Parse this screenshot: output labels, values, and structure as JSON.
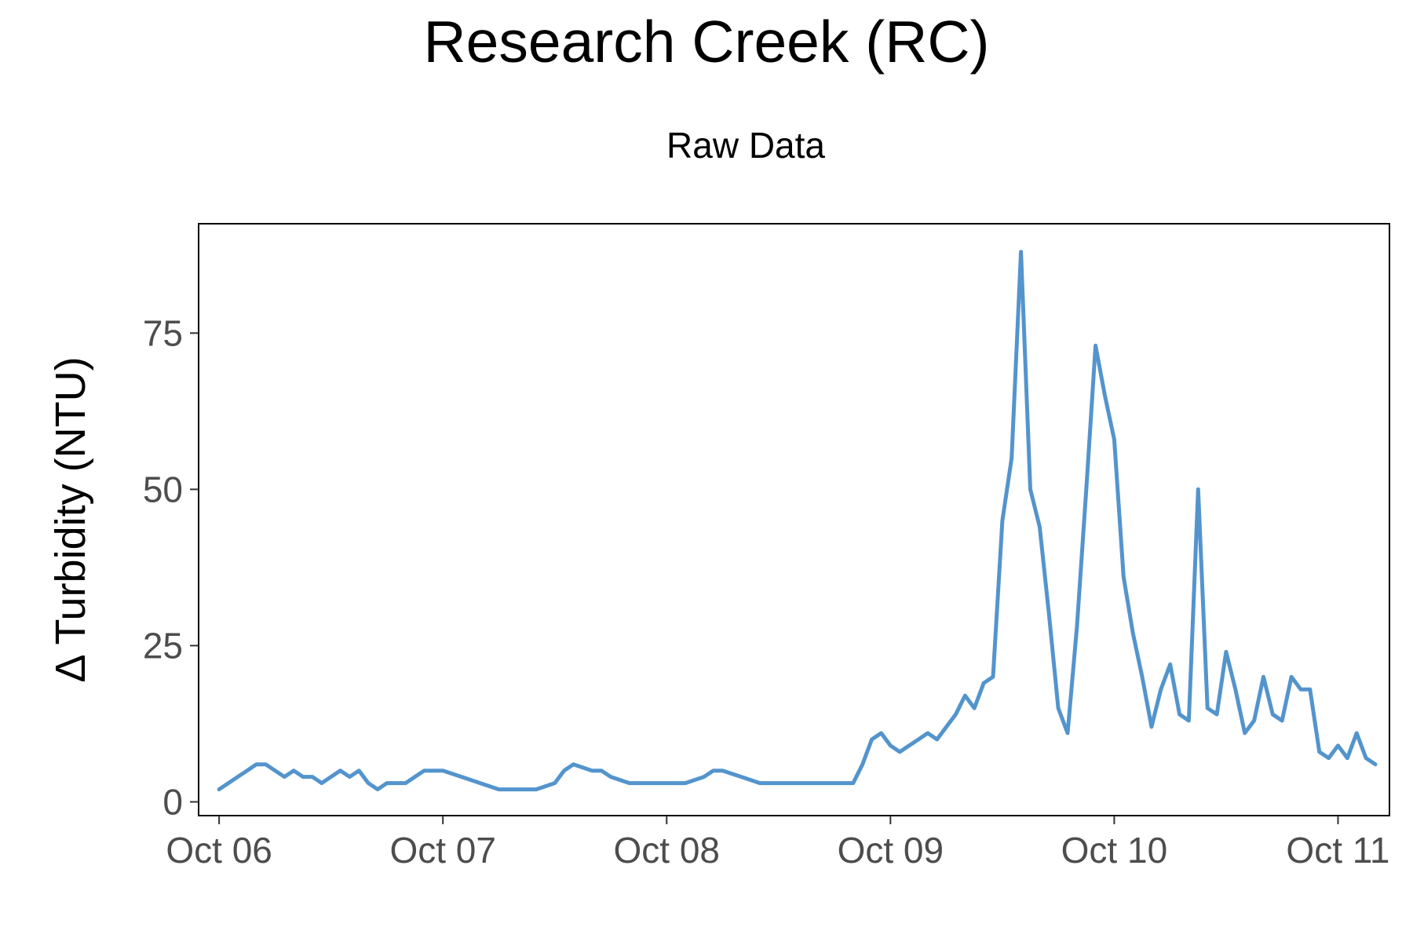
{
  "chart_data": {
    "type": "line",
    "title": "Research Creek (RC)",
    "xlabel": "",
    "ylabel": "Δ Turbidity (NTU)",
    "x_ticks": [
      "Oct 06",
      "Oct 07",
      "Oct 08",
      "Oct 09",
      "Oct 10",
      "Oct 11"
    ],
    "y_ticks": [
      0,
      25,
      50,
      75
    ],
    "xlim": [
      "2023-10-05 21:48",
      "2023-10-11 05:31"
    ],
    "ylim": [
      -2.2,
      92.5
    ],
    "grid": false,
    "legend_position": "top",
    "series": [
      {
        "name": "Raw Data",
        "color": "#5394cd",
        "points": [
          [
            "2023-10-06 00:00",
            2
          ],
          [
            "2023-10-06 01:00",
            3
          ],
          [
            "2023-10-06 02:00",
            4
          ],
          [
            "2023-10-06 03:00",
            5
          ],
          [
            "2023-10-06 04:00",
            6
          ],
          [
            "2023-10-06 05:00",
            6
          ],
          [
            "2023-10-06 06:00",
            5
          ],
          [
            "2023-10-06 07:00",
            4
          ],
          [
            "2023-10-06 08:00",
            5
          ],
          [
            "2023-10-06 09:00",
            4
          ],
          [
            "2023-10-06 10:00",
            4
          ],
          [
            "2023-10-06 11:00",
            3
          ],
          [
            "2023-10-06 12:00",
            4
          ],
          [
            "2023-10-06 13:00",
            5
          ],
          [
            "2023-10-06 14:00",
            4
          ],
          [
            "2023-10-06 15:00",
            5
          ],
          [
            "2023-10-06 16:00",
            3
          ],
          [
            "2023-10-06 17:00",
            2
          ],
          [
            "2023-10-06 18:00",
            3
          ],
          [
            "2023-10-06 19:00",
            3
          ],
          [
            "2023-10-06 20:00",
            3
          ],
          [
            "2023-10-06 21:00",
            4
          ],
          [
            "2023-10-06 22:00",
            5
          ],
          [
            "2023-10-07 00:00",
            5
          ],
          [
            "2023-10-07 02:00",
            4
          ],
          [
            "2023-10-07 04:00",
            3
          ],
          [
            "2023-10-07 06:00",
            2
          ],
          [
            "2023-10-07 08:00",
            2
          ],
          [
            "2023-10-07 10:00",
            2
          ],
          [
            "2023-10-07 12:00",
            3
          ],
          [
            "2023-10-07 13:00",
            5
          ],
          [
            "2023-10-07 14:00",
            6
          ],
          [
            "2023-10-07 16:00",
            5
          ],
          [
            "2023-10-07 17:00",
            5
          ],
          [
            "2023-10-07 18:00",
            4
          ],
          [
            "2023-10-07 20:00",
            3
          ],
          [
            "2023-10-07 22:00",
            3
          ],
          [
            "2023-10-08 00:00",
            3
          ],
          [
            "2023-10-08 02:00",
            3
          ],
          [
            "2023-10-08 04:00",
            4
          ],
          [
            "2023-10-08 05:00",
            5
          ],
          [
            "2023-10-08 06:00",
            5
          ],
          [
            "2023-10-08 08:00",
            4
          ],
          [
            "2023-10-08 10:00",
            3
          ],
          [
            "2023-10-08 12:00",
            3
          ],
          [
            "2023-10-08 14:00",
            3
          ],
          [
            "2023-10-08 16:00",
            3
          ],
          [
            "2023-10-08 18:00",
            3
          ],
          [
            "2023-10-08 20:00",
            3
          ],
          [
            "2023-10-08 21:00",
            6
          ],
          [
            "2023-10-08 22:00",
            10
          ],
          [
            "2023-10-08 23:00",
            11
          ],
          [
            "2023-10-09 00:00",
            9
          ],
          [
            "2023-10-09 01:00",
            8
          ],
          [
            "2023-10-09 02:00",
            9
          ],
          [
            "2023-10-09 03:00",
            10
          ],
          [
            "2023-10-09 04:00",
            11
          ],
          [
            "2023-10-09 05:00",
            10
          ],
          [
            "2023-10-09 06:00",
            12
          ],
          [
            "2023-10-09 07:00",
            14
          ],
          [
            "2023-10-09 08:00",
            17
          ],
          [
            "2023-10-09 09:00",
            15
          ],
          [
            "2023-10-09 10:00",
            19
          ],
          [
            "2023-10-09 11:00",
            20
          ],
          [
            "2023-10-09 12:00",
            45
          ],
          [
            "2023-10-09 13:00",
            55
          ],
          [
            "2023-10-09 14:00",
            88
          ],
          [
            "2023-10-09 15:00",
            50
          ],
          [
            "2023-10-09 16:00",
            44
          ],
          [
            "2023-10-09 17:00",
            30
          ],
          [
            "2023-10-09 18:00",
            15
          ],
          [
            "2023-10-09 19:00",
            11
          ],
          [
            "2023-10-09 20:00",
            28
          ],
          [
            "2023-10-09 21:00",
            50
          ],
          [
            "2023-10-09 22:00",
            73
          ],
          [
            "2023-10-09 23:00",
            65
          ],
          [
            "2023-10-10 00:00",
            58
          ],
          [
            "2023-10-10 01:00",
            36
          ],
          [
            "2023-10-10 02:00",
            27
          ],
          [
            "2023-10-10 03:00",
            20
          ],
          [
            "2023-10-10 04:00",
            12
          ],
          [
            "2023-10-10 05:00",
            18
          ],
          [
            "2023-10-10 06:00",
            22
          ],
          [
            "2023-10-10 07:00",
            14
          ],
          [
            "2023-10-10 08:00",
            13
          ],
          [
            "2023-10-10 09:00",
            50
          ],
          [
            "2023-10-10 10:00",
            15
          ],
          [
            "2023-10-10 11:00",
            14
          ],
          [
            "2023-10-10 12:00",
            24
          ],
          [
            "2023-10-10 13:00",
            18
          ],
          [
            "2023-10-10 14:00",
            11
          ],
          [
            "2023-10-10 15:00",
            13
          ],
          [
            "2023-10-10 16:00",
            20
          ],
          [
            "2023-10-10 17:00",
            14
          ],
          [
            "2023-10-10 18:00",
            13
          ],
          [
            "2023-10-10 19:00",
            20
          ],
          [
            "2023-10-10 20:00",
            18
          ],
          [
            "2023-10-10 21:00",
            18
          ],
          [
            "2023-10-10 22:00",
            8
          ],
          [
            "2023-10-10 23:00",
            7
          ],
          [
            "2023-10-11 00:00",
            9
          ],
          [
            "2023-10-11 01:00",
            7
          ],
          [
            "2023-10-11 02:00",
            11
          ],
          [
            "2023-10-11 03:00",
            7
          ],
          [
            "2023-10-11 04:00",
            6
          ]
        ]
      }
    ]
  }
}
